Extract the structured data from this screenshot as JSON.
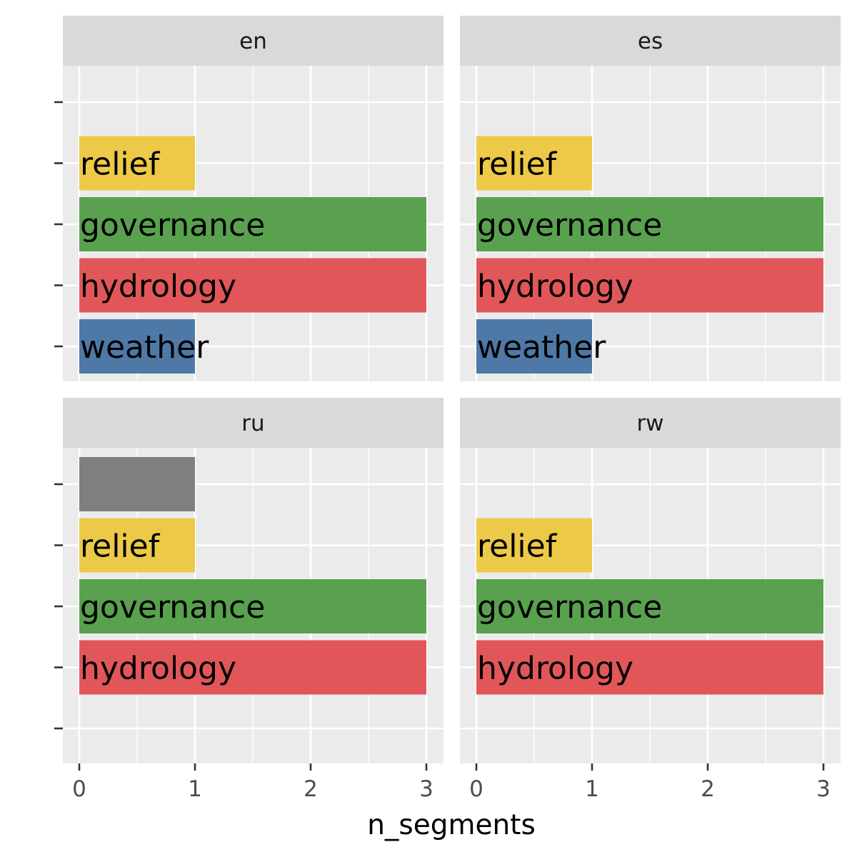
{
  "chart_data": {
    "type": "bar",
    "orientation": "horizontal",
    "xlabel": "n_segments",
    "ylabel": "",
    "xlim": [
      0,
      3
    ],
    "x_ticks": [
      "0",
      "1",
      "2",
      "3"
    ],
    "grid": true,
    "legend": "none",
    "colors": {
      "relief": "#EDC948",
      "governance": "#59A14F",
      "hydrology": "#E15759",
      "weather": "#4E79A7",
      "unlabeled": "#7F7F7F"
    },
    "facets": [
      {
        "name": "en",
        "bars": [
          {
            "label": "relief",
            "value": 1,
            "slot": 1,
            "color": "#EDC948"
          },
          {
            "label": "governance",
            "value": 3,
            "slot": 2,
            "color": "#59A14F"
          },
          {
            "label": "hydrology",
            "value": 3,
            "slot": 3,
            "color": "#E15759"
          },
          {
            "label": "weather",
            "value": 1,
            "slot": 4,
            "color": "#4E79A7"
          }
        ]
      },
      {
        "name": "es",
        "bars": [
          {
            "label": "relief",
            "value": 1,
            "slot": 1,
            "color": "#EDC948"
          },
          {
            "label": "governance",
            "value": 3,
            "slot": 2,
            "color": "#59A14F"
          },
          {
            "label": "hydrology",
            "value": 3,
            "slot": 3,
            "color": "#E15759"
          },
          {
            "label": "weather",
            "value": 1,
            "slot": 4,
            "color": "#4E79A7"
          }
        ]
      },
      {
        "name": "ru",
        "bars": [
          {
            "label": "",
            "value": 1,
            "slot": 0,
            "color": "#7F7F7F"
          },
          {
            "label": "relief",
            "value": 1,
            "slot": 1,
            "color": "#EDC948"
          },
          {
            "label": "governance",
            "value": 3,
            "slot": 2,
            "color": "#59A14F"
          },
          {
            "label": "hydrology",
            "value": 3,
            "slot": 3,
            "color": "#E15759"
          }
        ]
      },
      {
        "name": "rw",
        "bars": [
          {
            "label": "relief",
            "value": 1,
            "slot": 1,
            "color": "#EDC948"
          },
          {
            "label": "governance",
            "value": 3,
            "slot": 2,
            "color": "#59A14F"
          },
          {
            "label": "hydrology",
            "value": 3,
            "slot": 3,
            "color": "#E15759"
          }
        ]
      }
    ]
  }
}
